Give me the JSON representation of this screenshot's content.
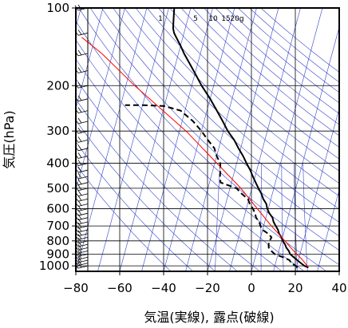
{
  "chart_data": {
    "type": "line",
    "subtype": "skew-T log-p thermodynamic diagram",
    "xlabel": "気温(実線), 露点(破線)",
    "ylabel": "気圧(hPa)",
    "xlim": [
      -80,
      40
    ],
    "ylim": [
      1050,
      100
    ],
    "y_scale": "log",
    "x_ticks": [
      -80,
      -60,
      -40,
      -20,
      0,
      20,
      40
    ],
    "x_tick_labels": [
      "−80",
      "−60",
      "−40",
      "−20",
      "0",
      "20",
      "40"
    ],
    "y_ticks": [
      100,
      200,
      300,
      400,
      500,
      600,
      700,
      800,
      900,
      1000
    ],
    "y_tick_labels": [
      "100",
      "200",
      "300",
      "400",
      "500",
      "600",
      "700",
      "800",
      "900",
      "1000"
    ],
    "grid": true,
    "mixing_ratio_labels": [
      "1",
      "5",
      "10",
      "15",
      "20g"
    ],
    "mixing_ratio_values": [
      1,
      5,
      10,
      15,
      20
    ],
    "colors": {
      "temperature": "#000000",
      "dewpoint": "#000000",
      "parcel": "#ff0000",
      "guides": "#3344cc",
      "grid": "#000000"
    },
    "series": [
      {
        "role": "temperature",
        "style": "solid",
        "values": [
          [
            1015,
            25.5
          ],
          [
            1000,
            23.5
          ],
          [
            975,
            21.5
          ],
          [
            950,
            19.5
          ],
          [
            925,
            17.5
          ],
          [
            900,
            15.5
          ],
          [
            875,
            14.5
          ],
          [
            850,
            13
          ],
          [
            825,
            12
          ],
          [
            800,
            10.5
          ],
          [
            775,
            9.5
          ],
          [
            750,
            8
          ],
          [
            725,
            7
          ],
          [
            700,
            5.5
          ],
          [
            675,
            4
          ],
          [
            650,
            3
          ],
          [
            625,
            1
          ],
          [
            600,
            -0.5
          ],
          [
            575,
            -1.5
          ],
          [
            550,
            -3.5
          ],
          [
            525,
            -5
          ],
          [
            500,
            -7
          ],
          [
            475,
            -9
          ],
          [
            450,
            -11
          ],
          [
            425,
            -13
          ],
          [
            400,
            -15.5
          ],
          [
            375,
            -18
          ],
          [
            350,
            -21
          ],
          [
            325,
            -24
          ],
          [
            300,
            -28
          ],
          [
            275,
            -31.5
          ],
          [
            250,
            -35.5
          ],
          [
            225,
            -40
          ],
          [
            200,
            -45.5
          ],
          [
            175,
            -51
          ],
          [
            150,
            -57.5
          ],
          [
            140,
            -60
          ],
          [
            130,
            -63
          ],
          [
            125,
            -64.5
          ],
          [
            120,
            -65.5
          ],
          [
            115,
            -66
          ],
          [
            110,
            -66.5
          ],
          [
            105,
            -67
          ],
          [
            100,
            -67.5
          ]
        ]
      },
      {
        "role": "dewpoint",
        "style": "dashed",
        "values": [
          [
            1015,
            20.5
          ],
          [
            1000,
            19.5
          ],
          [
            975,
            17
          ],
          [
            950,
            16
          ],
          [
            925,
            12.5
          ],
          [
            900,
            8.5
          ],
          [
            875,
            6.5
          ],
          [
            850,
            5
          ],
          [
            825,
            4.5
          ],
          [
            800,
            4.5
          ],
          [
            775,
            5
          ],
          [
            750,
            3
          ],
          [
            725,
            0
          ],
          [
            700,
            -1.5
          ],
          [
            675,
            -2.5
          ],
          [
            650,
            -4.5
          ],
          [
            625,
            -5.5
          ],
          [
            600,
            -7
          ],
          [
            575,
            -9
          ],
          [
            550,
            -10.5
          ],
          [
            525,
            -14
          ],
          [
            500,
            -17
          ],
          [
            475,
            -25
          ],
          [
            450,
            -26
          ],
          [
            425,
            -26.5
          ],
          [
            400,
            -27.5
          ],
          [
            375,
            -30
          ],
          [
            350,
            -32
          ],
          [
            325,
            -36
          ],
          [
            300,
            -40
          ],
          [
            275,
            -45
          ],
          [
            250,
            -52
          ],
          [
            240,
            -60
          ],
          [
            238,
            -70
          ],
          [
            238,
            -78
          ]
        ]
      },
      {
        "role": "parcel",
        "style": "solid",
        "values": [
          [
            1015,
            25.5
          ],
          [
            950,
            22
          ],
          [
            900,
            18.5
          ],
          [
            850,
            15
          ],
          [
            800,
            11.5
          ],
          [
            700,
            3.5
          ],
          [
            600,
            -5
          ],
          [
            500,
            -15
          ],
          [
            400,
            -29
          ],
          [
            300,
            -47
          ],
          [
            200,
            -76
          ],
          [
            150,
            -95
          ],
          [
            130,
            -106
          ]
        ]
      }
    ],
    "wind_barbs": {
      "side": "left",
      "levels_hPa": [
        1000,
        975,
        950,
        925,
        900,
        875,
        850,
        825,
        800,
        775,
        750,
        725,
        700,
        675,
        650,
        625,
        600,
        575,
        550,
        525,
        500,
        475,
        450,
        425,
        400,
        375,
        350,
        325,
        300,
        275,
        250,
        225,
        200,
        175,
        150,
        125,
        100
      ]
    }
  }
}
